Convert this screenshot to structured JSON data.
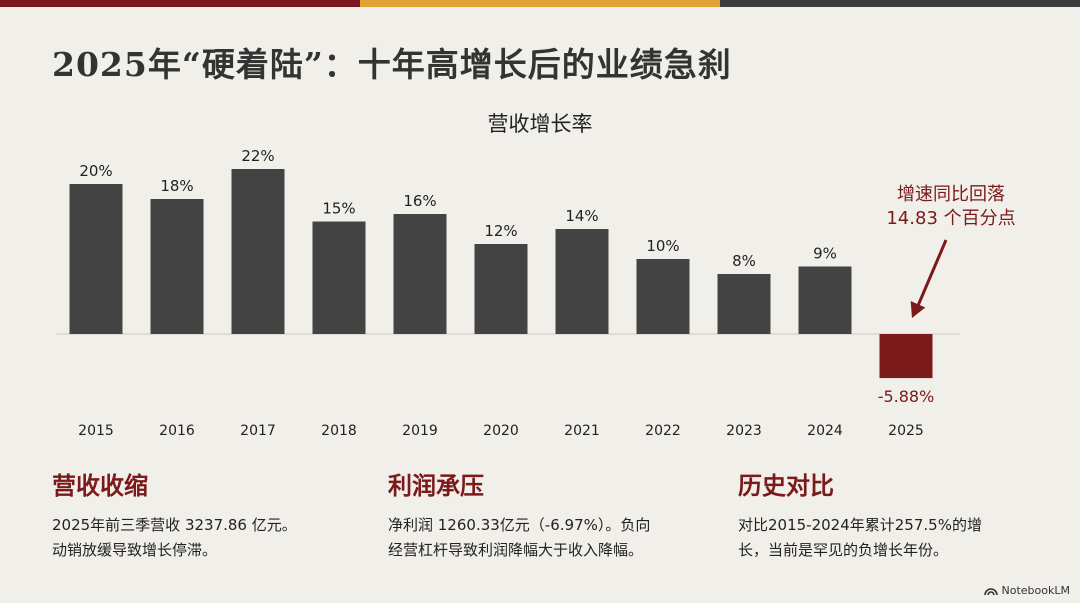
{
  "title": "2025年“硬着陆”：十年高增长后的业绩急刹",
  "colors": {
    "topbar": [
      "#7a1a1e",
      "#e1a233",
      "#3c3c3c"
    ],
    "bar": "#434343",
    "highlight_bar": "#7b1a1a",
    "accent_text": "#7b1a1a",
    "background": "#f1efe9"
  },
  "chart_data": {
    "type": "bar",
    "title": "营收增长率",
    "categories": [
      "2015",
      "2016",
      "2017",
      "2018",
      "2019",
      "2020",
      "2021",
      "2022",
      "2023",
      "2024",
      "2025"
    ],
    "values": [
      20,
      18,
      22,
      15,
      16,
      12,
      14,
      10,
      8,
      9,
      -5.88
    ],
    "data_labels": [
      "20%",
      "18%",
      "22%",
      "15%",
      "16%",
      "12%",
      "14%",
      "10%",
      "8%",
      "9%",
      "-5.88%"
    ],
    "highlight_index": 10,
    "ylim": [
      -8,
      25
    ],
    "grid": false,
    "annotation": {
      "lines": [
        "增速同比回落",
        "14.83 个百分点"
      ],
      "target_index": 10
    }
  },
  "cards": [
    {
      "title": "营收收缩",
      "lines": [
        "2025年前三季营收 3237.86 亿元。",
        "动销放缓导致增长停滞。"
      ]
    },
    {
      "title": "利润承压",
      "lines": [
        "净利润 1260.33亿元（-6.97%）。负向",
        "经营杠杆导致利润降幅大于收入降幅。"
      ]
    },
    {
      "title": "历史对比",
      "lines": [
        "对比2015-2024年累计257.5%的增",
        "长，当前是罕见的负增长年份。"
      ]
    }
  ],
  "brand": {
    "icon": "notebooklm-logo-icon",
    "label": "NotebookLM"
  }
}
